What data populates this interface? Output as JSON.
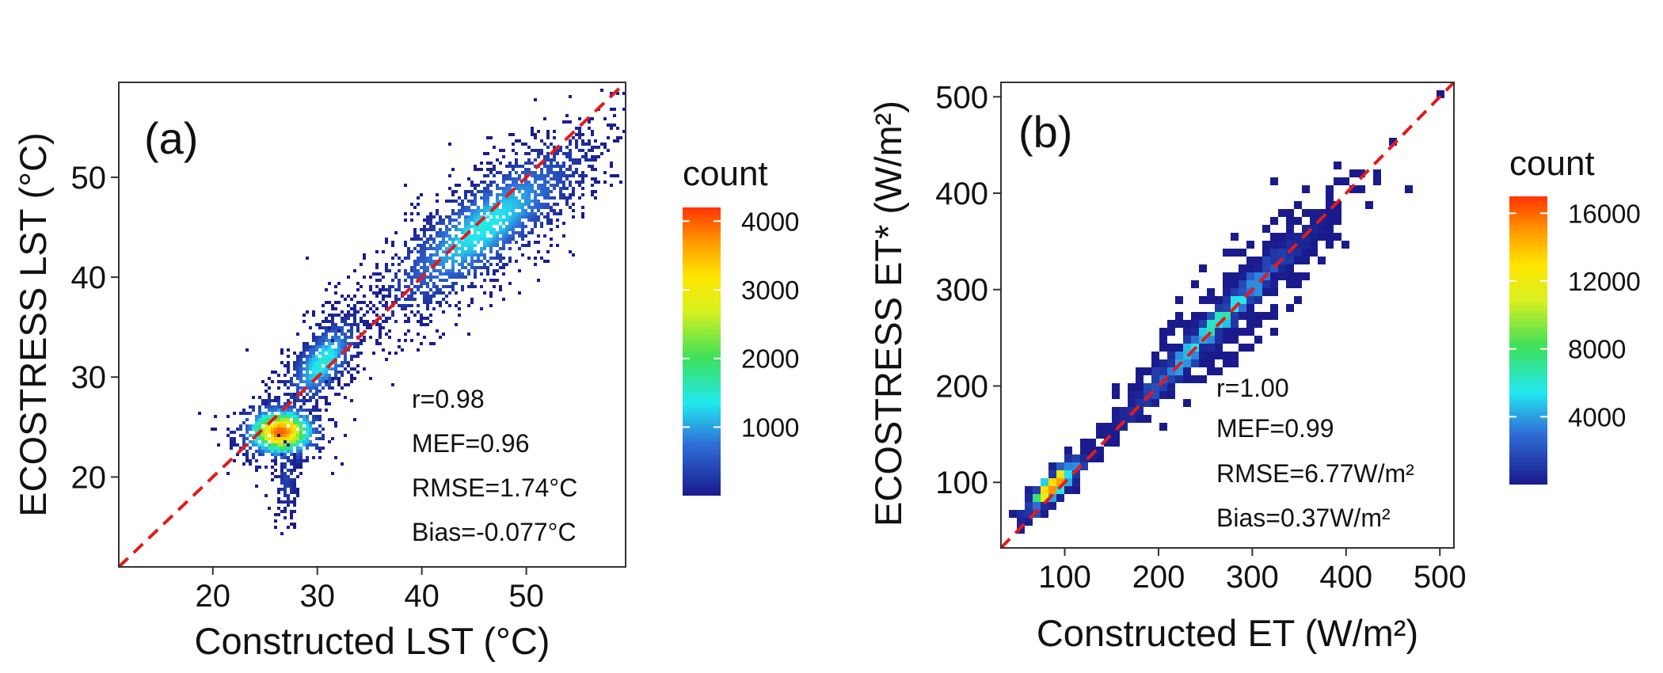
{
  "chart_data": [
    {
      "type": "heatmap",
      "panel_label": "(a)",
      "xlabel": "Constructed LST (°C)",
      "ylabel": "ECOSTRESS LST (°C)",
      "xlim": [
        11,
        59.5
      ],
      "ylim": [
        11,
        59.5
      ],
      "xticks": [
        20,
        30,
        40,
        50
      ],
      "yticks": [
        20,
        30,
        40,
        50
      ],
      "stats": [
        "r=0.98",
        "MEF=0.96",
        "RMSE=1.74°C",
        "Bias=-0.077°C"
      ],
      "reference_line": {
        "type": "1:1",
        "color": "#e31a1c",
        "style": "dashed"
      },
      "legend": {
        "title": "count",
        "ticks": [
          "1000",
          "2000",
          "3000",
          "4000"
        ],
        "tick_values": [
          1000,
          2000,
          3000,
          4000
        ],
        "min": 1,
        "max": 4200
      },
      "clusters": [
        {
          "cx": 26.5,
          "cy": 24.5,
          "sx": 2.2,
          "sy": 1.6,
          "rot": 0,
          "peak": 4000,
          "n": 700
        },
        {
          "cx": 27,
          "cy": 20,
          "sx": 0.6,
          "sy": 2.6,
          "rot": 0,
          "peak": 350,
          "n": 160
        },
        {
          "cx": 30.5,
          "cy": 31.5,
          "sx": 3.2,
          "sy": 1.4,
          "rot": 55,
          "peak": 1500,
          "n": 700
        },
        {
          "cx": 46,
          "cy": 45,
          "sx": 7.5,
          "sy": 2.4,
          "rot": 40,
          "peak": 1400,
          "n": 2000
        }
      ]
    },
    {
      "type": "heatmap",
      "panel_label": "(b)",
      "xlabel": "Constructed ET (W/m²)",
      "ylabel": "ECOSTRESS ET* (W/m²)",
      "xlim": [
        32,
        515
      ],
      "ylim": [
        32,
        515
      ],
      "xticks": [
        100,
        200,
        300,
        400,
        500
      ],
      "yticks": [
        100,
        200,
        300,
        400,
        500
      ],
      "stats": [
        "r=1.00",
        "MEF=0.99",
        "RMSE=6.77W/m²",
        "Bias=0.37W/m²"
      ],
      "reference_line": {
        "type": "1:1",
        "color": "#e31a1c",
        "style": "dashed"
      },
      "legend": {
        "title": "count",
        "ticks": [
          "4000",
          "8000",
          "12000",
          "16000"
        ],
        "tick_values": [
          4000,
          8000,
          12000,
          16000
        ],
        "min": 1,
        "max": 17000
      },
      "clusters": [
        {
          "cx": 88,
          "cy": 95,
          "sx": 22,
          "sy": 6,
          "rot": 45,
          "peak": 16000,
          "n": 300
        },
        {
          "cx": 260,
          "cy": 262,
          "sx": 75,
          "sy": 6,
          "rot": 45,
          "peak": 7000,
          "n": 900
        },
        {
          "cx": 300,
          "cy": 300,
          "sx": 80,
          "sy": 20,
          "rot": 45,
          "peak": 60,
          "n": 300
        }
      ]
    }
  ]
}
